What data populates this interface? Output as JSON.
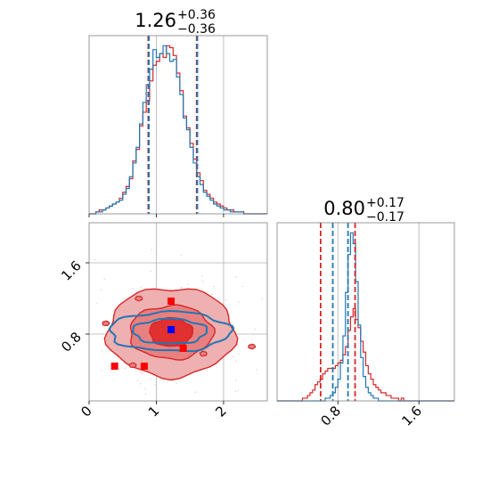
{
  "colors": {
    "red": "#d62728",
    "blue": "#1f77b4",
    "red_fill_outer": "#eeb0b0",
    "red_fill_mid": "#e88080",
    "red_fill_inner": "#e03030",
    "marker_red": "#ff0000",
    "marker_blue": "#0000ff"
  },
  "chart_data": [
    {
      "id": "top-left-marginal",
      "type": "histogram",
      "parameter_index": 0,
      "title": {
        "median": "1.26",
        "upper": "+0.36",
        "lower": "−0.36"
      },
      "xlim": [
        0,
        2.65
      ],
      "grid": true,
      "tick_labels_x": [],
      "tick_labels_y": [],
      "quantile_lines": {
        "red": [
          0.88,
          1.6
        ],
        "blue": [
          0.89,
          1.61
        ]
      },
      "series": [
        {
          "color": "red",
          "bin_edges_start": 0.0,
          "bin_width": 0.05,
          "counts": [
            0,
            0,
            1,
            2,
            2,
            3,
            4,
            5,
            6,
            8,
            11,
            14,
            18,
            27,
            33,
            45,
            52,
            58,
            68,
            76,
            78,
            82,
            80,
            86,
            85,
            81,
            72,
            63,
            50,
            44,
            36,
            28,
            21,
            17,
            12,
            10,
            8,
            6,
            5,
            4,
            3,
            2,
            2,
            1,
            1,
            1,
            0,
            0,
            0,
            0,
            0,
            0,
            0
          ]
        },
        {
          "color": "blue",
          "bin_edges_start": 0.0,
          "bin_width": 0.05,
          "counts": [
            0,
            0,
            1,
            1,
            2,
            3,
            4,
            5,
            6,
            7,
            10,
            13,
            19,
            26,
            34,
            46,
            57,
            66,
            74,
            84,
            80,
            82,
            86,
            82,
            78,
            79,
            70,
            61,
            49,
            43,
            34,
            26,
            19,
            15,
            11,
            9,
            7,
            5,
            4,
            3,
            2,
            2,
            1,
            1,
            1,
            1,
            0,
            0,
            0,
            0,
            0,
            0,
            0
          ]
        }
      ]
    },
    {
      "id": "bottom-right-marginal",
      "type": "histogram",
      "parameter_index": 1,
      "title": {
        "median": "0.80",
        "upper": "+0.17",
        "lower": "−0.17"
      },
      "xlim": [
        0.2,
        1.95
      ],
      "xticks": [
        0.8,
        1.6
      ],
      "tick_labels_x": [
        "0.8",
        "1.6"
      ],
      "grid": true,
      "quantile_lines": {
        "red": [
          0.63,
          0.97
        ],
        "blue": [
          0.75,
          0.9
        ]
      },
      "series": [
        {
          "color": "red",
          "bin_edges_start": 0.2,
          "bin_width": 0.025,
          "counts": [
            0,
            0,
            0,
            0,
            0,
            0,
            0,
            0,
            0,
            0,
            1,
            1,
            2,
            3,
            4,
            6,
            7,
            8,
            10,
            11,
            12,
            12,
            12,
            13,
            14,
            15,
            17,
            20,
            26,
            31,
            34,
            30,
            27,
            22,
            18,
            13,
            10,
            8,
            6,
            5,
            4,
            3,
            3,
            2,
            2,
            1,
            1,
            1,
            0,
            1,
            0,
            0,
            0,
            0,
            0,
            0,
            0,
            0,
            0,
            0,
            0,
            0,
            0,
            0,
            0,
            0,
            0,
            0,
            0,
            0
          ]
        },
        {
          "color": "blue",
          "bin_edges_start": 0.2,
          "bin_width": 0.025,
          "counts": [
            0,
            0,
            0,
            0,
            0,
            0,
            0,
            0,
            0,
            0,
            0,
            0,
            0,
            0,
            0,
            0,
            0,
            0,
            0,
            1,
            1,
            2,
            3,
            5,
            8,
            14,
            24,
            40,
            54,
            62,
            58,
            44,
            28,
            16,
            9,
            5,
            3,
            2,
            1,
            1,
            0,
            0,
            0,
            0,
            0,
            0,
            0,
            0,
            0,
            0,
            0,
            0,
            0,
            0,
            0,
            0,
            0,
            0,
            0,
            0,
            0,
            0,
            0,
            0,
            0,
            0,
            0,
            0,
            0,
            0
          ]
        }
      ]
    },
    {
      "id": "bottom-left-2d",
      "type": "contour",
      "x_parameter_index": 0,
      "y_parameter_index": 1,
      "xlim": [
        0,
        2.65
      ],
      "ylim": [
        0.05,
        2.05
      ],
      "xticks": [
        0,
        1,
        2
      ],
      "yticks": [
        0.8,
        1.6
      ],
      "tick_labels_x": [
        "0",
        "1",
        "2"
      ],
      "tick_labels_y": [
        "0.8",
        "1.6"
      ],
      "grid": true,
      "center": [
        1.22,
        0.82
      ],
      "contour_levels": [
        {
          "level": "outer",
          "rx": 0.95,
          "ry": 0.5
        },
        {
          "level": "mid",
          "rx": 0.62,
          "ry": 0.3
        },
        {
          "level": "inner",
          "rx": 0.32,
          "ry": 0.16
        }
      ],
      "blue_contour_levels": [
        {
          "level": "outer",
          "rx": 0.9,
          "ry": 0.22
        },
        {
          "level": "mid",
          "rx": 0.55,
          "ry": 0.14
        }
      ],
      "isolated_red_regions": [
        [
          0.74,
          1.2
        ],
        [
          2.42,
          0.66
        ],
        [
          0.25,
          0.92
        ],
        [
          0.65,
          0.45
        ],
        [
          1.7,
          0.58
        ]
      ],
      "markers": [
        {
          "color": "marker_red",
          "x": 1.22,
          "y": 1.17
        },
        {
          "color": "marker_red",
          "x": 1.4,
          "y": 0.64
        },
        {
          "color": "marker_red",
          "x": 0.38,
          "y": 0.44
        },
        {
          "color": "marker_red",
          "x": 0.82,
          "y": 0.44
        },
        {
          "color": "marker_blue",
          "x": 1.22,
          "y": 0.85
        }
      ]
    }
  ]
}
